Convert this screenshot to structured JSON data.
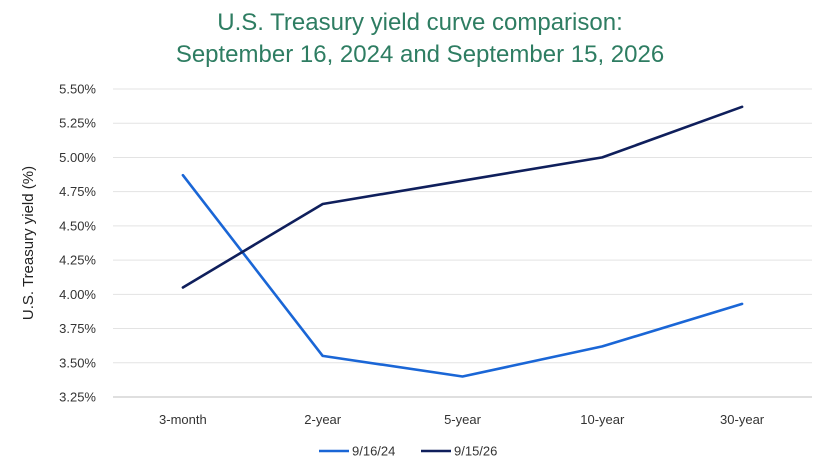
{
  "chart_data": {
    "type": "line",
    "title": "U.S. Treasury yield curve comparison:",
    "subtitle": "September 16, 2024 and September 15, 2026",
    "ylabel": "U.S. Treasury yield (%)",
    "xlabel": "",
    "categories": [
      "3-month",
      "2-year",
      "5-year",
      "10-year",
      "30-year"
    ],
    "ylim": [
      3.25,
      5.5
    ],
    "yticks": [
      3.25,
      3.5,
      3.75,
      4.0,
      4.25,
      4.5,
      4.75,
      5.0,
      5.25,
      5.5
    ],
    "ytick_labels": [
      "3.25%",
      "3.50%",
      "3.75%",
      "4.00%",
      "4.25%",
      "4.50%",
      "4.75%",
      "5.00%",
      "5.25%",
      "5.50%"
    ],
    "grid": true,
    "legend_position": "bottom",
    "series": [
      {
        "name": "9/16/24",
        "color": "#1a66d6",
        "values": [
          4.87,
          3.55,
          3.4,
          3.62,
          3.93
        ]
      },
      {
        "name": "9/15/26",
        "color": "#0f1f5c",
        "values": [
          4.05,
          4.66,
          4.83,
          5.0,
          5.37
        ]
      }
    ]
  }
}
